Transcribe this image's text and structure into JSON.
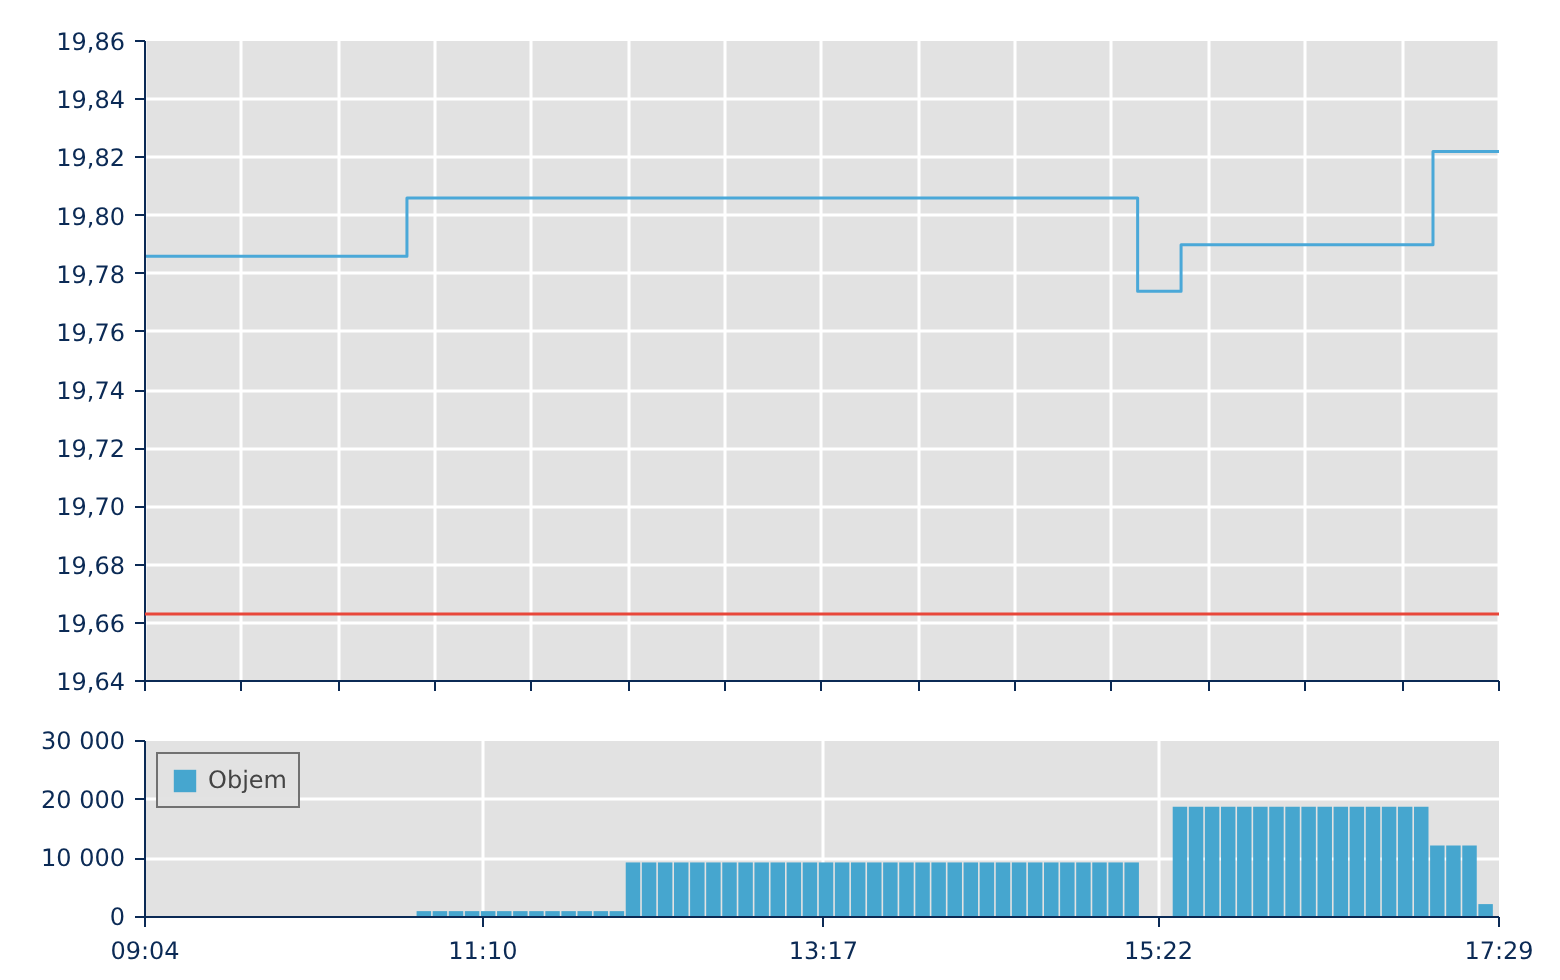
{
  "chart_data": [
    {
      "type": "step",
      "xlim": [
        9.0667,
        17.4833
      ],
      "ylim": [
        19.64,
        19.86
      ],
      "xticks": [
        {
          "value": 9.067,
          "label": null
        },
        {
          "value": 9.668,
          "label": null
        },
        {
          "value": 10.269,
          "label": null
        },
        {
          "value": 10.87,
          "label": null
        },
        {
          "value": 11.471,
          "label": null
        },
        {
          "value": 12.072,
          "label": null
        },
        {
          "value": 12.673,
          "label": null
        },
        {
          "value": 13.274,
          "label": null
        },
        {
          "value": 13.875,
          "label": null
        },
        {
          "value": 14.476,
          "label": null
        },
        {
          "value": 15.077,
          "label": null
        },
        {
          "value": 15.679,
          "label": null
        },
        {
          "value": 16.28,
          "label": null
        },
        {
          "value": 16.881,
          "label": null
        },
        {
          "value": 17.482,
          "label": null
        }
      ],
      "yticks": [
        {
          "value": 19.64,
          "label": "19,64"
        },
        {
          "value": 19.66,
          "label": "19,66"
        },
        {
          "value": 19.68,
          "label": "19,68"
        },
        {
          "value": 19.7,
          "label": "19,70"
        },
        {
          "value": 19.72,
          "label": "19,72"
        },
        {
          "value": 19.74,
          "label": "19,74"
        },
        {
          "value": 19.76,
          "label": "19,76"
        },
        {
          "value": 19.78,
          "label": "19,78"
        },
        {
          "value": 19.8,
          "label": "19,80"
        },
        {
          "value": 19.82,
          "label": "19,82"
        },
        {
          "value": 19.84,
          "label": "19,84"
        },
        {
          "value": 19.86,
          "label": "19,86"
        }
      ],
      "grid": true,
      "tick_labels": "y",
      "ref_lines": [
        {
          "axis": "y",
          "value": 19.663,
          "color": "#e8473a"
        }
      ],
      "series": [
        {
          "color": "#4aa8d8",
          "x": [
            9.0667,
            10.695,
            15.237,
            15.507,
            17.073,
            17.4833
          ],
          "values": [
            19.786,
            19.806,
            19.774,
            19.79,
            19.822,
            19.822
          ]
        }
      ]
    },
    {
      "type": "bar",
      "xlim": [
        9.0667,
        17.4833
      ],
      "ylim": [
        0,
        30000
      ],
      "xticks": [
        {
          "value": 9.0667,
          "label": "09:04"
        },
        {
          "value": 11.1667,
          "label": "11:10"
        },
        {
          "value": 13.2833,
          "label": "13:17"
        },
        {
          "value": 15.3667,
          "label": "15:22"
        },
        {
          "value": 17.4833,
          "label": "17:29"
        }
      ],
      "yticks": [
        {
          "value": 0,
          "label": "0"
        },
        {
          "value": 10000,
          "label": "10 000"
        },
        {
          "value": 20000,
          "label": "20 000"
        },
        {
          "value": 30000,
          "label": "30 000"
        }
      ],
      "grid": true,
      "legend": "top left",
      "x": [
        10.8,
        10.9,
        11.0,
        11.1,
        11.2,
        11.3,
        11.4,
        11.5,
        11.6,
        11.7,
        11.8,
        11.9,
        12.0,
        12.1,
        12.2,
        12.3,
        12.4,
        12.5,
        12.6,
        12.7,
        12.8,
        12.9,
        13.0,
        13.1,
        13.2,
        13.3,
        13.4,
        13.5,
        13.6,
        13.7,
        13.8,
        13.9,
        14.0,
        14.1,
        14.2,
        14.3,
        14.4,
        14.5,
        14.6,
        14.7,
        14.8,
        14.9,
        15.0,
        15.1,
        15.2,
        15.3,
        15.4,
        15.5,
        15.6,
        15.7,
        15.8,
        15.9,
        16.0,
        16.1,
        16.2,
        16.3,
        16.4,
        16.5,
        16.6,
        16.7,
        16.8,
        16.9,
        17.0,
        17.1,
        17.2,
        17.3,
        17.4
      ],
      "series": [
        {
          "name": "Objem",
          "color": "#46a6cf",
          "values": [
            1000,
            1000,
            1000,
            1000,
            1000,
            1000,
            1000,
            1000,
            1000,
            1000,
            1000,
            1000,
            1000,
            9300,
            9300,
            9300,
            9300,
            9300,
            9300,
            9300,
            9300,
            9300,
            9300,
            9300,
            9300,
            9300,
            9300,
            9300,
            9300,
            9300,
            9300,
            9300,
            9300,
            9300,
            9300,
            9300,
            9300,
            9300,
            9300,
            9300,
            9300,
            9300,
            9300,
            9300,
            9300,
            null,
            null,
            18800,
            18800,
            18800,
            18800,
            18800,
            18800,
            18800,
            18800,
            18800,
            18800,
            18800,
            18800,
            18800,
            18800,
            18800,
            18800,
            12200,
            12200,
            12200,
            2200
          ]
        }
      ]
    }
  ]
}
